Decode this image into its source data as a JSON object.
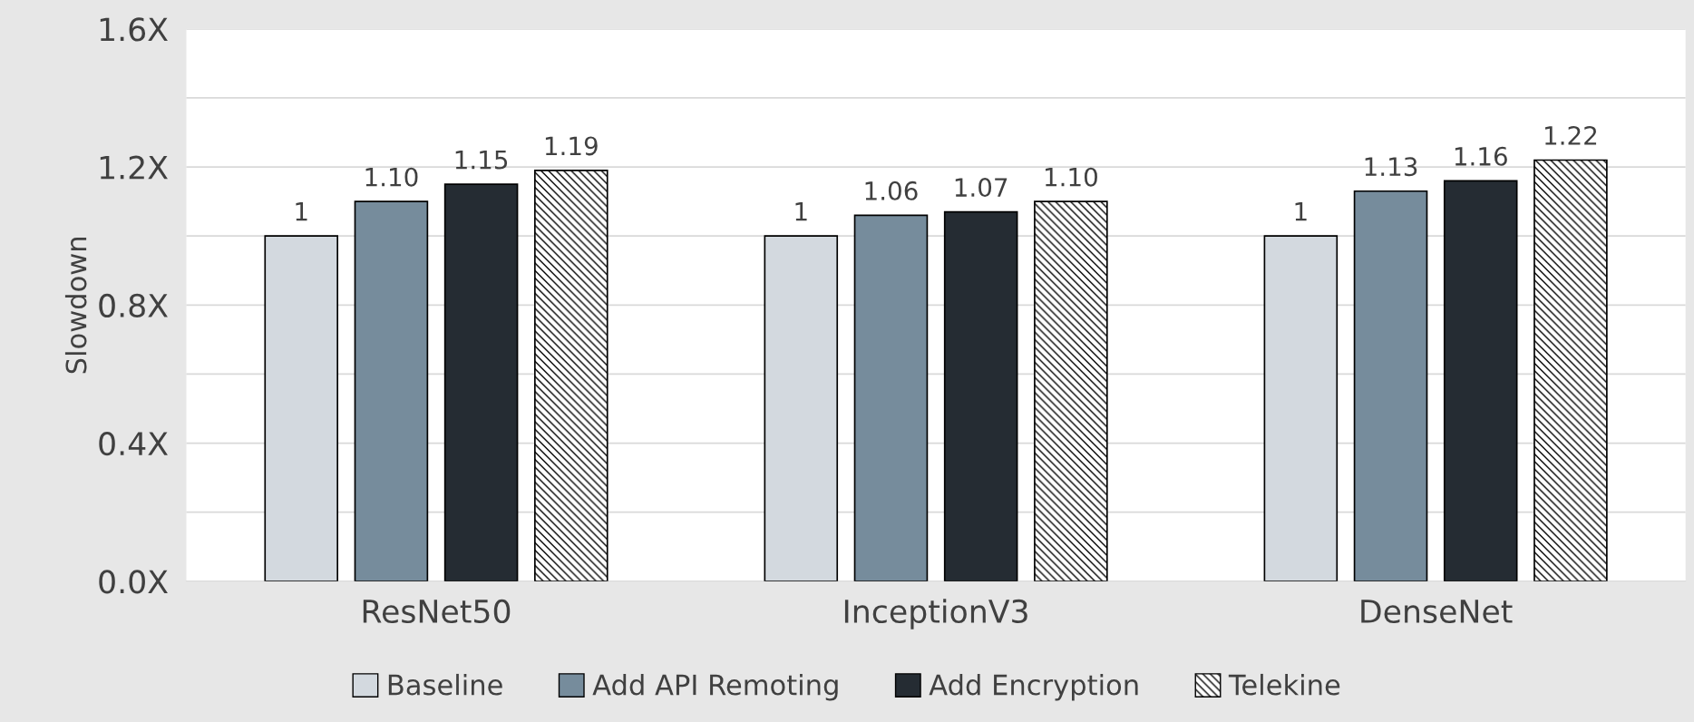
{
  "chart_data": {
    "type": "bar",
    "ylabel": "Slowdown",
    "categories": [
      "ResNet50",
      "InceptionV3",
      "DenseNet"
    ],
    "series": [
      {
        "name": "Baseline",
        "color": "#d3d9df",
        "values": [
          1,
          1,
          1
        ],
        "value_labels": [
          "1",
          "1",
          "1"
        ]
      },
      {
        "name": "Add API Remoting",
        "color": "#768c9c",
        "values": [
          1.1,
          1.06,
          1.13
        ],
        "value_labels": [
          "1.10",
          "1.06",
          "1.13"
        ]
      },
      {
        "name": "Add Encryption",
        "color": "#252c33",
        "values": [
          1.15,
          1.07,
          1.16
        ],
        "value_labels": [
          "1.15",
          "1.07",
          "1.16"
        ]
      },
      {
        "name": "Telekine",
        "color": "#000000",
        "values": [
          1.19,
          1.1,
          1.22
        ],
        "value_labels": [
          "1.19",
          "1.10",
          "1.22"
        ]
      }
    ],
    "ylim": [
      0,
      1.6
    ],
    "yticks": [
      {
        "value": 0,
        "label": "0.0X"
      },
      {
        "value": 0.2,
        "label": null
      },
      {
        "value": 0.4,
        "label": "0.4X"
      },
      {
        "value": 0.6,
        "label": null
      },
      {
        "value": 0.8,
        "label": "0.8X"
      },
      {
        "value": 1.0,
        "label": null
      },
      {
        "value": 1.2,
        "label": "1.2X"
      },
      {
        "value": 1.4,
        "label": null
      },
      {
        "value": 1.6,
        "label": "1.6X"
      }
    ],
    "grid": "y",
    "legend": "bottom"
  }
}
